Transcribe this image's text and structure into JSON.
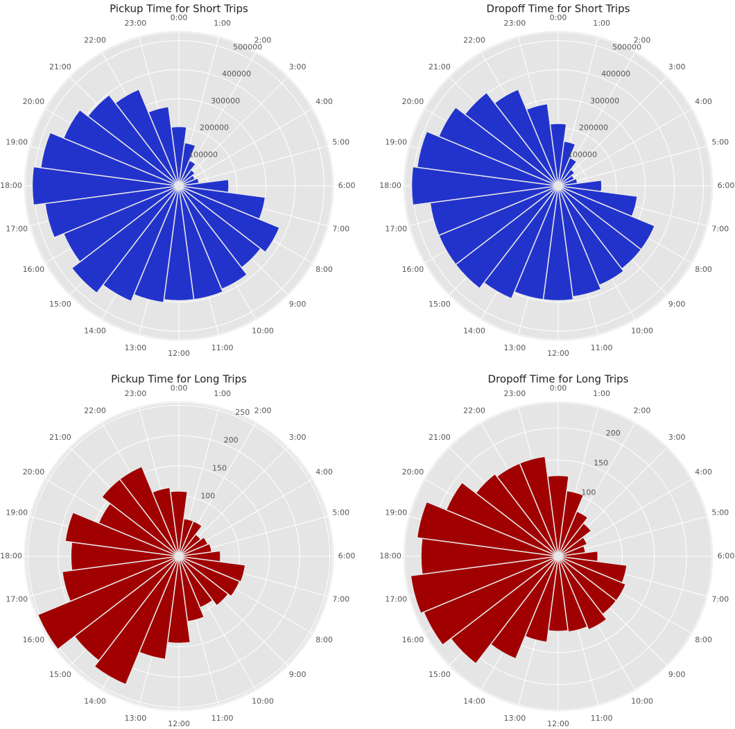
{
  "chart_data": [
    {
      "type": "polar",
      "title": "Pickup Time for Short Trips",
      "color": "#2233cc",
      "categories": [
        "0:00",
        "1:00",
        "2:00",
        "3:00",
        "4:00",
        "5:00",
        "6:00",
        "7:00",
        "8:00",
        "9:00",
        "10:00",
        "11:00",
        "12:00",
        "13:00",
        "14:00",
        "15:00",
        "16:00",
        "17:00",
        "18:00",
        "19:00",
        "20:00",
        "21:00",
        "22:00",
        "23:00"
      ],
      "values": [
        204000,
        150000,
        95000,
        70000,
        60000,
        70000,
        172000,
        300000,
        375000,
        355000,
        385000,
        395000,
        395000,
        405000,
        430000,
        465000,
        430000,
        465000,
        505000,
        480000,
        430000,
        395000,
        360000,
        275000
      ],
      "ylim": [
        0,
        530000
      ],
      "yticks": [
        100000,
        200000,
        300000,
        400000,
        500000
      ],
      "grid": true
    },
    {
      "type": "polar",
      "title": "Dropoff Time for Short Trips",
      "color": "#2233cc",
      "categories": [
        "0:00",
        "1:00",
        "2:00",
        "3:00",
        "4:00",
        "5:00",
        "6:00",
        "7:00",
        "8:00",
        "9:00",
        "10:00",
        "11:00",
        "12:00",
        "13:00",
        "14:00",
        "15:00",
        "16:00",
        "17:00",
        "18:00",
        "19:00",
        "20:00",
        "21:00",
        "22:00",
        "23:00"
      ],
      "values": [
        215000,
        155000,
        105000,
        72000,
        60000,
        67000,
        150000,
        275000,
        360000,
        360000,
        370000,
        385000,
        395000,
        395000,
        420000,
        445000,
        445000,
        445000,
        505000,
        490000,
        445000,
        405000,
        360000,
        285000
      ],
      "ylim": [
        0,
        530000
      ],
      "yticks": [
        100000,
        200000,
        300000,
        400000,
        500000
      ],
      "grid": true
    },
    {
      "type": "polar",
      "title": "Pickup Time for Long Trips",
      "color": "#a00000",
      "categories": [
        "0:00",
        "1:00",
        "2:00",
        "3:00",
        "4:00",
        "5:00",
        "6:00",
        "7:00",
        "8:00",
        "9:00",
        "10:00",
        "11:00",
        "12:00",
        "13:00",
        "14:00",
        "15:00",
        "16:00",
        "17:00",
        "18:00",
        "19:00",
        "20:00",
        "21:00",
        "22:00",
        "23:00"
      ],
      "values": [
        108,
        63,
        63,
        46,
        52,
        55,
        69,
        111,
        109,
        103,
        92,
        109,
        144,
        172,
        230,
        218,
        253,
        195,
        179,
        190,
        144,
        161,
        161,
        115
      ],
      "ylim": [
        0,
        255
      ],
      "yticks": [
        100,
        150,
        200,
        250
      ],
      "grid": true
    },
    {
      "type": "polar",
      "title": "Dropoff Time for Long Trips",
      "color": "#a00000",
      "categories": [
        "0:00",
        "1:00",
        "2:00",
        "3:00",
        "4:00",
        "5:00",
        "6:00",
        "7:00",
        "8:00",
        "9:00",
        "10:00",
        "11:00",
        "12:00",
        "13:00",
        "14:00",
        "15:00",
        "16:00",
        "17:00",
        "18:00",
        "19:00",
        "20:00",
        "21:00",
        "22:00",
        "23:00"
      ],
      "values": [
        126,
        103,
        76,
        65,
        49,
        43,
        62,
        108,
        114,
        114,
        124,
        119,
        117,
        135,
        173,
        211,
        227,
        232,
        214,
        222,
        189,
        162,
        157,
        157
      ],
      "ylim": [
        0,
        240
      ],
      "yticks": [
        100,
        150,
        200
      ],
      "grid": true
    }
  ]
}
